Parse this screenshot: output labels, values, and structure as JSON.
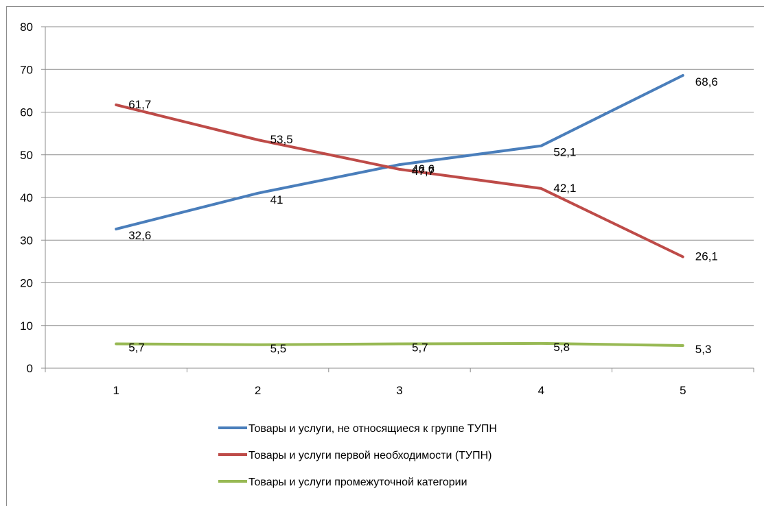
{
  "chart_data": {
    "type": "line",
    "categories": [
      "1",
      "2",
      "3",
      "4",
      "5"
    ],
    "ylim": [
      0,
      80
    ],
    "yticks": [
      0,
      10,
      20,
      30,
      40,
      50,
      60,
      70,
      80
    ],
    "ytick_labels": [
      "0",
      "10",
      "20",
      "30",
      "40",
      "50",
      "60",
      "70",
      "80"
    ],
    "grid": "horizontal",
    "legend_position": "bottom",
    "series": [
      {
        "name": "Товары и услуги, не относящиеся к группе ТУПН",
        "color": "#4a7ebb",
        "values": [
          32.6,
          41,
          47.7,
          52.1,
          68.6
        ],
        "labels": [
          "32,6",
          "41",
          "47,7",
          "52,1",
          "68,6"
        ]
      },
      {
        "name": "Товары и услуги первой необходимости (ТУПН)",
        "color": "#be4b48",
        "values": [
          61.7,
          53.5,
          46.6,
          42.1,
          26.1
        ],
        "labels": [
          "61,7",
          "53,5",
          "46,6",
          "42,1",
          "26,1"
        ]
      },
      {
        "name": "Товары и услуги промежуточной категории",
        "color": "#98b954",
        "values": [
          5.7,
          5.5,
          5.7,
          5.8,
          5.3
        ],
        "labels": [
          "5,7",
          "5,5",
          "5,7",
          "5,8",
          "5,3"
        ]
      }
    ]
  }
}
